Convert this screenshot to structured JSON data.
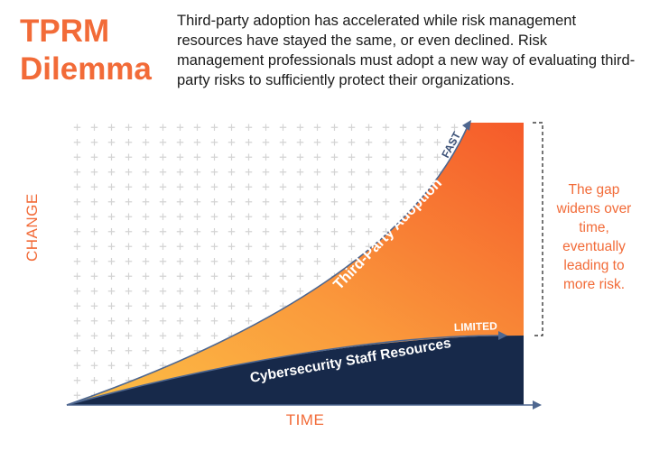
{
  "header": {
    "title_line1": "TPRM",
    "title_line2": "Dilemma",
    "intro": "Third-party adoption has accelerated while risk management resources have stayed the same, or even declined. Risk management professionals must adopt a new way of evaluating third-party risks to sufficiently protect their organizations."
  },
  "diagram": {
    "x_axis_label": "TIME",
    "y_axis_label": "CHANGE",
    "adoption_label": "Third-Party Adoption",
    "adoption_rate": "FAST",
    "resources_label": "Cybersecurity Staff Resources",
    "resources_rate": "LIMITED",
    "gap_note": "The gap widens over time, eventually leading to more risk."
  },
  "colors": {
    "brand_orange": "#f26b38",
    "navy": "#17294a",
    "gradient_light": "#fbb040",
    "gradient_dark": "#f7642e",
    "grid_plus": "#d4d4d4"
  }
}
